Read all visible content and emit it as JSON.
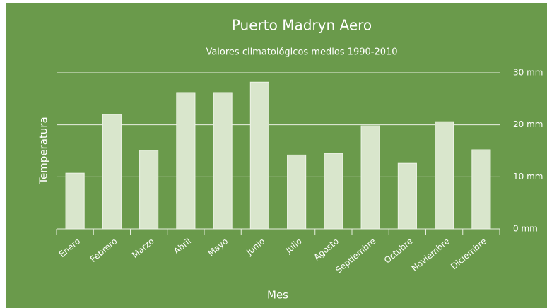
{
  "chart_data": {
    "type": "bar",
    "title": "Puerto Madryn Aero",
    "subtitle": "Valores climatológicos medios 1990-2010",
    "x_label": "Mes",
    "y_label": "Temperatura",
    "categories": [
      "Enero",
      "Febrero",
      "Marzo",
      "Abril",
      "Mayo",
      "Junio",
      "Julio",
      "Agosto",
      "Septiembre",
      "Octubre",
      "Noviembre",
      "Diciembre"
    ],
    "values": [
      10.7,
      22.0,
      15.1,
      26.2,
      26.2,
      28.2,
      14.2,
      14.5,
      19.8,
      12.6,
      20.6,
      15.2
    ],
    "color": "#d9e6cc",
    "ylim": [
      0,
      30
    ],
    "yticks": [
      {
        "value": 0,
        "label": "0 mm"
      },
      {
        "value": 10,
        "label": "10 mm"
      },
      {
        "value": 20,
        "label": "20 mm"
      },
      {
        "value": 30,
        "label": "30 mm"
      }
    ],
    "grid": true
  }
}
